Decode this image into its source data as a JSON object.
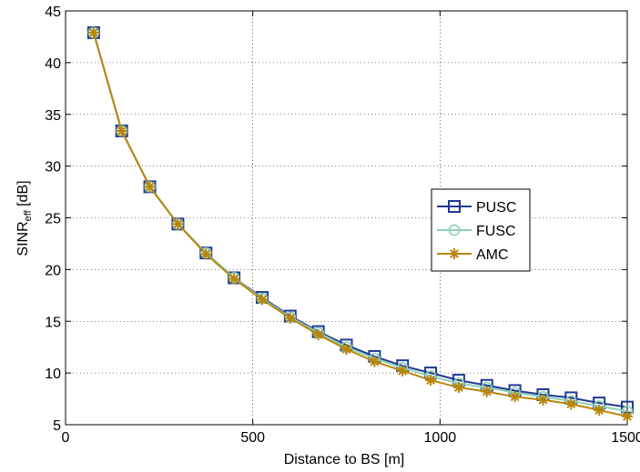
{
  "chart_data": {
    "type": "line",
    "xlabel": "Distance to BS [m]",
    "ylabel_main": "SINR",
    "ylabel_sub": "eff",
    "ylabel_unit": " [dB]",
    "xlim": [
      0,
      1500
    ],
    "ylim": [
      5,
      45
    ],
    "xticks": [
      0,
      500,
      1000,
      1500
    ],
    "yticks": [
      5,
      10,
      15,
      20,
      25,
      30,
      35,
      40,
      45
    ],
    "grid": true,
    "legend_position": "right",
    "x": [
      75,
      150,
      225,
      300,
      375,
      450,
      525,
      600,
      675,
      750,
      825,
      900,
      975,
      1050,
      1125,
      1200,
      1275,
      1350,
      1425,
      1500
    ],
    "series": [
      {
        "name": "PUSC",
        "color": "#1f3a93",
        "marker": "square",
        "values": [
          42.9,
          33.4,
          28.0,
          24.4,
          21.6,
          19.2,
          17.3,
          15.5,
          14.0,
          12.7,
          11.6,
          10.7,
          10.0,
          9.3,
          8.8,
          8.3,
          7.9,
          7.6,
          7.1,
          6.7
        ]
      },
      {
        "name": "FUSC",
        "color": "#8fcfb5",
        "marker": "circle",
        "values": [
          42.9,
          33.4,
          28.0,
          24.4,
          21.6,
          19.2,
          17.2,
          15.4,
          13.9,
          12.5,
          11.4,
          10.5,
          9.7,
          9.0,
          8.6,
          8.1,
          7.7,
          7.3,
          6.8,
          6.3
        ]
      },
      {
        "name": "AMC",
        "color": "#b8860b",
        "marker": "star",
        "values": [
          42.9,
          33.4,
          28.0,
          24.4,
          21.5,
          19.1,
          17.1,
          15.3,
          13.7,
          12.3,
          11.1,
          10.2,
          9.3,
          8.6,
          8.2,
          7.7,
          7.4,
          7.0,
          6.4,
          5.8
        ]
      }
    ]
  }
}
